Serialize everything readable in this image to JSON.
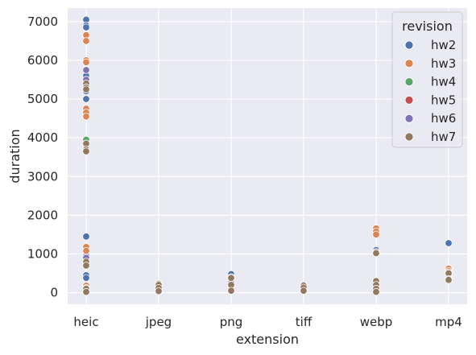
{
  "chart_data": {
    "type": "scatter",
    "xlabel": "extension",
    "ylabel": "duration",
    "categories": [
      "heic",
      "jpeg",
      "png",
      "tiff",
      "webp",
      "mp4"
    ],
    "ylim": [
      -300,
      7350
    ],
    "yticks": [
      0,
      1000,
      2000,
      3000,
      4000,
      5000,
      6000,
      7000
    ],
    "grid": true,
    "legend": {
      "title": "revision",
      "placement": "top-right"
    },
    "colors": {
      "hw2": "#4c72b0",
      "hw3": "#dd8452",
      "hw4": "#55a868",
      "hw5": "#c44e52",
      "hw6": "#8172b3",
      "hw7": "#937860",
      "background": "#eaeaf2",
      "grid": "#ffffff"
    },
    "series": [
      {
        "name": "hw2",
        "points": [
          [
            "heic",
            7050
          ],
          [
            "heic",
            6900
          ],
          [
            "heic",
            6850
          ],
          [
            "heic",
            5600
          ],
          [
            "heic",
            5400
          ],
          [
            "heic",
            5200
          ],
          [
            "heic",
            5000
          ],
          [
            "heic",
            1450
          ],
          [
            "heic",
            950
          ],
          [
            "heic",
            450
          ],
          [
            "heic",
            380
          ],
          [
            "jpeg",
            80
          ],
          [
            "png",
            480
          ],
          [
            "png",
            120
          ],
          [
            "tiff",
            200
          ],
          [
            "tiff",
            60
          ],
          [
            "webp",
            1100
          ],
          [
            "webp",
            150
          ],
          [
            "mp4",
            1280
          ],
          [
            "mp4",
            420
          ]
        ]
      },
      {
        "name": "hw3",
        "points": [
          [
            "heic",
            6650
          ],
          [
            "heic",
            6500
          ],
          [
            "heic",
            6000
          ],
          [
            "heic",
            5950
          ],
          [
            "heic",
            4750
          ],
          [
            "heic",
            4650
          ],
          [
            "heic",
            4550
          ],
          [
            "heic",
            1180
          ],
          [
            "heic",
            1080
          ],
          [
            "heic",
            180
          ],
          [
            "heic",
            120
          ],
          [
            "jpeg",
            180
          ],
          [
            "png",
            350
          ],
          [
            "tiff",
            130
          ],
          [
            "webp",
            1660
          ],
          [
            "webp",
            1580
          ],
          [
            "webp",
            1500
          ],
          [
            "webp",
            120
          ],
          [
            "mp4",
            620
          ],
          [
            "mp4",
            560
          ]
        ]
      },
      {
        "name": "hw4",
        "points": [
          [
            "heic",
            3950
          ],
          [
            "heic",
            3800
          ],
          [
            "heic",
            860
          ],
          [
            "heic",
            60
          ],
          [
            "png",
            180
          ],
          [
            "tiff",
            100
          ],
          [
            "webp",
            200
          ],
          [
            "mp4",
            350
          ]
        ]
      },
      {
        "name": "hw5",
        "points": [
          [
            "heic",
            3700
          ],
          [
            "heic",
            820
          ],
          [
            "png",
            200
          ],
          [
            "tiff",
            90
          ],
          [
            "webp",
            180
          ],
          [
            "mp4",
            380
          ]
        ]
      },
      {
        "name": "hw6",
        "points": [
          [
            "heic",
            5750
          ],
          [
            "heic",
            5500
          ],
          [
            "heic",
            900
          ],
          [
            "png",
            250
          ],
          [
            "webp",
            1050
          ],
          [
            "mp4",
            500
          ]
        ]
      },
      {
        "name": "hw7",
        "points": [
          [
            "heic",
            5400
          ],
          [
            "heic",
            5300
          ],
          [
            "heic",
            5250
          ],
          [
            "heic",
            3850
          ],
          [
            "heic",
            3700
          ],
          [
            "heic",
            3650
          ],
          [
            "heic",
            800
          ],
          [
            "heic",
            700
          ],
          [
            "heic",
            100
          ],
          [
            "heic",
            20
          ],
          [
            "jpeg",
            230
          ],
          [
            "jpeg",
            200
          ],
          [
            "jpeg",
            120
          ],
          [
            "jpeg",
            40
          ],
          [
            "png",
            400
          ],
          [
            "png",
            380
          ],
          [
            "png",
            200
          ],
          [
            "png",
            50
          ],
          [
            "tiff",
            180
          ],
          [
            "tiff",
            130
          ],
          [
            "tiff",
            50
          ],
          [
            "webp",
            1050
          ],
          [
            "webp",
            1020
          ],
          [
            "webp",
            300
          ],
          [
            "webp",
            200
          ],
          [
            "webp",
            100
          ],
          [
            "webp",
            20
          ],
          [
            "mp4",
            520
          ],
          [
            "mp4",
            500
          ],
          [
            "mp4",
            350
          ],
          [
            "mp4",
            330
          ]
        ]
      }
    ]
  }
}
